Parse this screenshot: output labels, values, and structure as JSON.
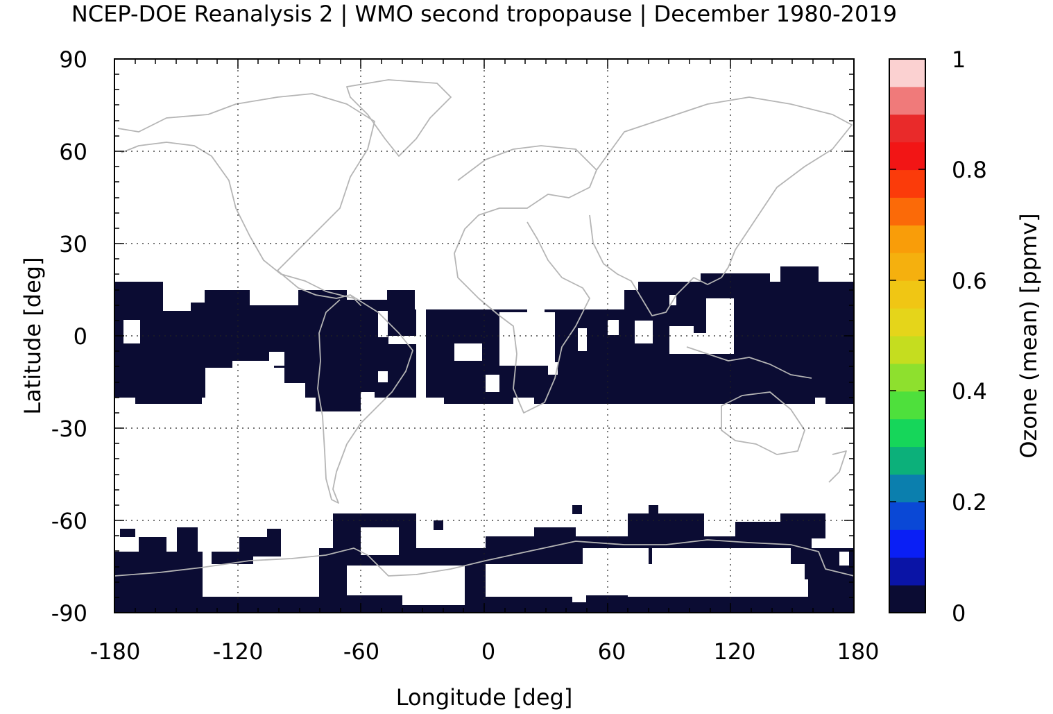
{
  "title": "NCEP-DOE Reanalysis 2 | WMO second tropopause | December 1980-2019",
  "xlabel": "Longitude [deg]",
  "ylabel": "Latitude [deg]",
  "x_ticks": [
    "-180",
    "-120",
    "-60",
    "0",
    "60",
    "120",
    "180"
  ],
  "y_ticks": [
    "90",
    "60",
    "30",
    "0",
    "-30",
    "-60",
    "-90"
  ],
  "colorbar": {
    "label": "Ozone (mean) [ppmv]",
    "ticks": [
      "0",
      "0.2",
      "0.4",
      "0.6",
      "0.8",
      "1"
    ],
    "range": [
      0,
      1
    ],
    "colors": [
      "#0b0c33",
      "#0a14a6",
      "#0a1ff5",
      "#0a48d6",
      "#0b7fae",
      "#0cb07a",
      "#16d65a",
      "#4ee03c",
      "#8ee02e",
      "#c5dd1f",
      "#e5d51a",
      "#f0c614",
      "#f5b00e",
      "#f99d09",
      "#fb6a08",
      "#fb3b0a",
      "#f21515",
      "#e92a2a",
      "#f07a7a",
      "#fbd1d1"
    ]
  },
  "chart_data": {
    "type": "heatmap",
    "x_range": [
      -180,
      180
    ],
    "y_range": [
      -90,
      90
    ],
    "x_ticks": [
      -180,
      -120,
      -60,
      0,
      60,
      120,
      180
    ],
    "y_ticks": [
      90,
      60,
      30,
      0,
      -30,
      -60,
      -90
    ],
    "grid": true,
    "coastlines": true,
    "value_range": [
      0,
      1
    ],
    "regions_ppmv_0": [
      {
        "lon": [
          -180,
          -20
        ],
        "lat": [
          -25,
          17
        ]
      },
      {
        "lon": [
          -20,
          180
        ],
        "lat": [
          -25,
          17
        ]
      },
      {
        "lon": [
          -180,
          180
        ],
        "lat": [
          -90,
          -60
        ]
      }
    ]
  }
}
